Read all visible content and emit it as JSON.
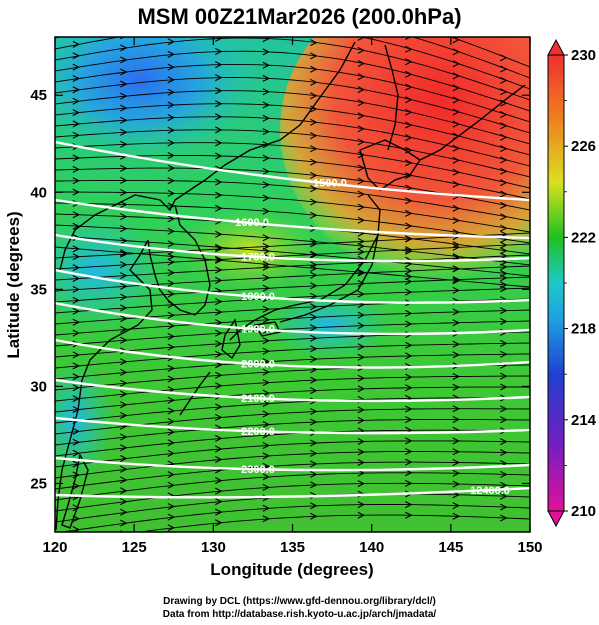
{
  "title": "MSM 00Z21Mar2026 (200.0hPa)",
  "x_axis": {
    "label": "Longitude (degrees)",
    "range": [
      120,
      150
    ],
    "ticks": [
      "120",
      "125",
      "130",
      "135",
      "140",
      "145",
      "150"
    ]
  },
  "y_axis": {
    "label": "Latitude  (degrees)",
    "range": [
      22.5,
      48
    ],
    "ticks": [
      "25",
      "30",
      "35",
      "40",
      "45"
    ]
  },
  "colorbar": {
    "range": [
      210,
      230
    ],
    "tick_labels": [
      "230",
      "226",
      "222",
      "218",
      "214",
      "210"
    ],
    "colors": [
      "#e0119b",
      "#2040d0",
      "#1fc8e0",
      "#20c020",
      "#d8e020",
      "#f08020",
      "#ee3030"
    ]
  },
  "contours": [
    {
      "label": "1500.0"
    },
    {
      "label": "1600.0"
    },
    {
      "label": "1700.0"
    },
    {
      "label": "1800.0"
    },
    {
      "label": "1900.0"
    },
    {
      "label": "2000.0"
    },
    {
      "label": "2100.0"
    },
    {
      "label": "2200.0"
    },
    {
      "label": "2300.0"
    },
    {
      "label": "12400.0"
    }
  ],
  "credits": {
    "line1": "Drawing by DCL (https://www.gfd-dennou.org/library/dcl/)",
    "line2": "Data from http://database.rish.kyoto-u.ac.jp/arch/jmadata/"
  }
}
